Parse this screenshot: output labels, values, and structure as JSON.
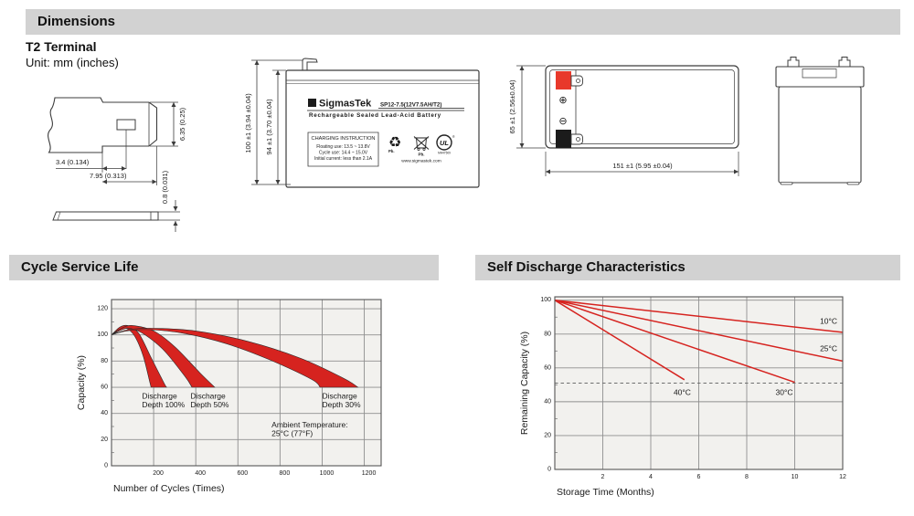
{
  "sections": {
    "dimensions": "Dimensions",
    "cycle_service_life": "Cycle Service Life",
    "self_discharge": "Self Discharge Characteristics"
  },
  "header": {
    "terminal_type": "T2 Terminal",
    "unit_note": "Unit: mm (inches)"
  },
  "colors": {
    "chart_red": "#d6231f",
    "terminal_red": "#e8392b",
    "terminal_black": "#1b1b1b",
    "bar_gray": "#d2d2d2"
  },
  "drawings": {
    "terminal": {
      "dim_offset": "3.4 (0.134)",
      "dim_width": "7.95 (0.313)",
      "dim_height": "6.35 (0.25)",
      "dim_thickness": "0.8 (0.031)"
    },
    "front": {
      "dim_total_height": "100 ±1 (3.94 ±0.04)",
      "dim_case_height": "94 ±1 (3.70 ±0.04)"
    },
    "top": {
      "dim_depth": "65 ±1 (2.56±0.04)",
      "dim_length": "151 ±1 (5.95 ±0.04)",
      "positive_symbol": "⊕",
      "negative_symbol": "⊖"
    }
  },
  "label": {
    "logo_glyph": "Σ",
    "brand": "SigmasTek",
    "model": "SP12-7.5(12V7.5AH/T2)",
    "product": "Rechargeable Sealed Lead-Acid Battery",
    "charging_title": "CHARGING INSTRUCTION",
    "charging_lines": [
      "Floating use: 13.5 ~ 13.8V",
      "Cycle use: 14.4 ~ 15.0V",
      "Initial current: less than 2.1A"
    ],
    "recycle_glyph": "♻",
    "recycle_pb": "Pb.",
    "bin_pb": "Pb.",
    "ul_text": "UL",
    "ul_reg": "®",
    "ul_code": "MH47509",
    "website": "www.sigmastek.com"
  },
  "chart_data": [
    {
      "type": "area",
      "title": "Cycle Service Life",
      "xlabel": "Number of Cycles (Times)",
      "ylabel": "Capacity (%)",
      "xlim": [
        0,
        1280
      ],
      "ylim": [
        0,
        127
      ],
      "xticks": [
        200,
        400,
        600,
        800,
        1000,
        1200
      ],
      "yticks": [
        0,
        20,
        40,
        60,
        80,
        100,
        120
      ],
      "grid": true,
      "xtick_dx": 5,
      "bands": [
        {
          "name": "Discharge Depth 100%",
          "upper": [
            [
              0,
              100
            ],
            [
              40,
              106
            ],
            [
              80,
              107
            ],
            [
              130,
              101
            ],
            [
              190,
              82
            ],
            [
              250,
              63
            ],
            [
              262,
              60
            ]
          ],
          "lower": [
            [
              0,
              100
            ],
            [
              35,
              104
            ],
            [
              70,
              105
            ],
            [
              110,
              99
            ],
            [
              150,
              84
            ],
            [
              183,
              63
            ],
            [
              188,
              60
            ]
          ]
        },
        {
          "name": "Discharge Depth 50%",
          "upper": [
            [
              0,
              100
            ],
            [
              60,
              106
            ],
            [
              110,
              107
            ],
            [
              200,
              103
            ],
            [
              300,
              91
            ],
            [
              420,
              71
            ],
            [
              490,
              60
            ]
          ],
          "lower": [
            [
              0,
              100
            ],
            [
              50,
              104
            ],
            [
              90,
              105
            ],
            [
              160,
              100
            ],
            [
              250,
              88
            ],
            [
              350,
              68
            ],
            [
              382,
              60
            ]
          ]
        },
        {
          "name": "Discharge Depth 30%",
          "upper": [
            [
              0,
              100
            ],
            [
              80,
              104
            ],
            [
              200,
              105
            ],
            [
              400,
              103
            ],
            [
              650,
              95
            ],
            [
              900,
              82
            ],
            [
              1100,
              67
            ],
            [
              1170,
              60
            ]
          ],
          "lower": [
            [
              0,
              100
            ],
            [
              70,
              103
            ],
            [
              180,
              104
            ],
            [
              350,
              101
            ],
            [
              550,
              93
            ],
            [
              750,
              81
            ],
            [
              950,
              66
            ],
            [
              990,
              60
            ]
          ]
        }
      ],
      "annotations": [
        {
          "lines": [
            "Discharge",
            "Depth 100%"
          ],
          "x": 145,
          "y": 57
        },
        {
          "lines": [
            "Discharge",
            "Depth 50%"
          ],
          "x": 375,
          "y": 57
        },
        {
          "lines": [
            "Discharge",
            "Depth 30%"
          ],
          "x": 1000,
          "y": 57
        },
        {
          "lines": [
            "Ambient Temperature:",
            "25°C (77°F)"
          ],
          "x": 760,
          "y": 35
        }
      ]
    },
    {
      "type": "line",
      "title": "Self Discharge Characteristics",
      "xlabel": "Storage Time (Months)",
      "ylabel": "Remaining Capacity (%)",
      "xlim": [
        0,
        12
      ],
      "ylim": [
        0,
        102
      ],
      "xticks": [
        2,
        4,
        6,
        8,
        10,
        12
      ],
      "yticks": [
        0,
        20,
        40,
        60,
        80,
        100
      ],
      "grid": true,
      "xtick_dx": 0,
      "series": [
        {
          "name": "10°C",
          "points": [
            [
              0,
              100
            ],
            [
              12,
              81
            ]
          ],
          "label_x": 11.05,
          "label_y": 86
        },
        {
          "name": "25°C",
          "points": [
            [
              0,
              100
            ],
            [
              12,
              64
            ]
          ],
          "label_x": 11.05,
          "label_y": 70
        },
        {
          "name": "30°C",
          "points": [
            [
              0,
              100
            ],
            [
              10,
              51.5
            ]
          ],
          "label_x": 9.2,
          "label_y": 44
        },
        {
          "name": "40°C",
          "points": [
            [
              0,
              100
            ],
            [
              5.4,
              53
            ]
          ],
          "label_x": 4.95,
          "label_y": 44
        }
      ],
      "dashed_line_y": 51
    }
  ]
}
